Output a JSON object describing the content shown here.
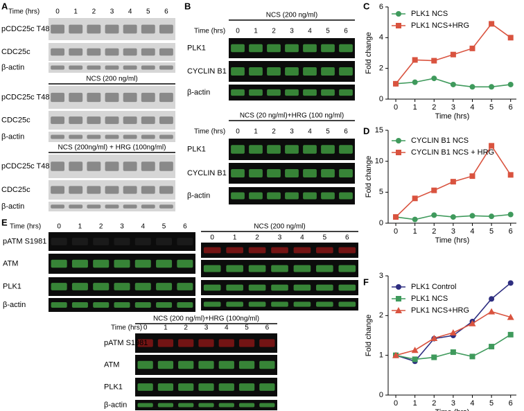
{
  "panel_letters": [
    "A",
    "B",
    "C",
    "D",
    "E",
    "F"
  ],
  "blots": [
    {
      "time_label": "Time (hrs)",
      "lanes": [
        "0",
        "1",
        "2",
        "3",
        "4",
        "5",
        "6"
      ],
      "rows": [
        "pCDC25c T48",
        "CDC25c",
        "β-actin"
      ]
    },
    {
      "title": "NCS (200 ng/ml)",
      "rows": [
        "pCDC25c T48",
        "CDC25c",
        "β-actin"
      ]
    },
    {
      "title": "NCS (200ng/ml) + HRG (100ng/ml)",
      "rows": [
        "pCDC25c T48",
        "CDC25c",
        "β-actin"
      ]
    },
    {
      "title": "NCS (200 ng/ml)",
      "time_label": "Time (hrs)",
      "lanes": [
        "0",
        "1",
        "2",
        "3",
        "4",
        "5",
        "6"
      ],
      "rows": [
        "PLK1",
        "CYCLIN B1",
        "β-actin"
      ]
    },
    {
      "title": "NCS (20 ng/ml)+HRG (100 ng/ml)",
      "time_label": "Time (hrs)",
      "lanes": [
        "0",
        "1",
        "2",
        "3",
        "4",
        "5",
        "6"
      ],
      "rows": [
        "PLK1",
        "CYCLIN B1",
        "β-actin"
      ]
    },
    {
      "time_label": "Time (hrs)",
      "lanes": [
        "0",
        "1",
        "2",
        "3",
        "4",
        "5",
        "6"
      ],
      "rows": [
        "pATM S1981",
        "ATM",
        "PLK1",
        "β-actin"
      ]
    },
    {
      "title": "NCS (200 ng/ml)",
      "lanes": [
        "0",
        "1",
        "2",
        "3",
        "4",
        "5",
        "6"
      ]
    },
    {
      "title": "NCS (200 ng/ml)+HRG (100ng/ml)",
      "time_label": "Time (hrs)",
      "lanes": [
        "0",
        "1",
        "2",
        "3",
        "4",
        "5",
        "6"
      ],
      "rows": [
        "pATM S1981",
        "ATM",
        "PLK1",
        "β-actin"
      ]
    }
  ],
  "chart_data": [
    {
      "type": "line",
      "x": [
        0,
        1,
        2,
        3,
        4,
        5,
        6
      ],
      "xlabel": "Time (hrs)",
      "ylabel": "Fold change",
      "xlim": [
        -0.4,
        6.3
      ],
      "xticks": [
        0,
        1,
        2,
        3,
        4,
        5,
        6
      ],
      "ylim": [
        0,
        6
      ],
      "yticks": [
        0,
        2,
        4,
        6
      ],
      "series": [
        {
          "name": "PLK1 NCS",
          "color": "#3f9a5c",
          "marker": "circle",
          "values": [
            1,
            1.1,
            1.35,
            0.95,
            0.8,
            0.8,
            0.95
          ]
        },
        {
          "name": "PLK1 NCS+HRG",
          "color": "#d9533f",
          "marker": "square",
          "values": [
            1,
            2.55,
            2.5,
            2.9,
            3.3,
            4.9,
            4.0
          ]
        }
      ]
    },
    {
      "type": "line",
      "x": [
        0,
        1,
        2,
        3,
        4,
        5,
        6
      ],
      "xlabel": "Time (hrs)",
      "ylabel": "Fold change",
      "xlim": [
        -0.4,
        6.3
      ],
      "xticks": [
        0,
        1,
        2,
        3,
        4,
        5,
        6
      ],
      "ylim": [
        0,
        15
      ],
      "yticks": [
        0,
        5,
        10,
        15
      ],
      "series": [
        {
          "name": "CYCLIN B1 NCS",
          "color": "#3f9a5c",
          "marker": "circle",
          "values": [
            1,
            0.6,
            1.3,
            1.0,
            1.2,
            1.1,
            1.4
          ]
        },
        {
          "name": "CYCLIN B1 NCS + HRG",
          "color": "#d9533f",
          "marker": "square",
          "values": [
            1,
            4.0,
            5.3,
            6.7,
            7.6,
            12.5,
            7.8
          ]
        }
      ]
    },
    {
      "type": "line",
      "x": [
        0,
        1,
        2,
        3,
        4,
        5,
        6
      ],
      "xlabel": "Time (hrs)",
      "ylabel": "Fold change",
      "xlim": [
        -0.4,
        6.3
      ],
      "xticks": [
        0,
        1,
        2,
        3,
        4,
        5,
        6
      ],
      "ylim": [
        0,
        3
      ],
      "yticks": [
        0,
        1,
        2,
        3
      ],
      "series": [
        {
          "name": "PLK1 Control",
          "color": "#2e2e80",
          "marker": "circle",
          "values": [
            1,
            0.85,
            1.42,
            1.5,
            1.85,
            2.42,
            2.82
          ]
        },
        {
          "name": "PLK1 NCS",
          "color": "#3f9a5c",
          "marker": "square",
          "values": [
            1,
            0.9,
            0.95,
            1.08,
            0.97,
            1.22,
            1.52
          ]
        },
        {
          "name": "PLK1 NCS+HRG",
          "color": "#d9533f",
          "marker": "triangle",
          "values": [
            1,
            1.13,
            1.43,
            1.57,
            1.8,
            2.1,
            1.96
          ]
        }
      ]
    }
  ]
}
